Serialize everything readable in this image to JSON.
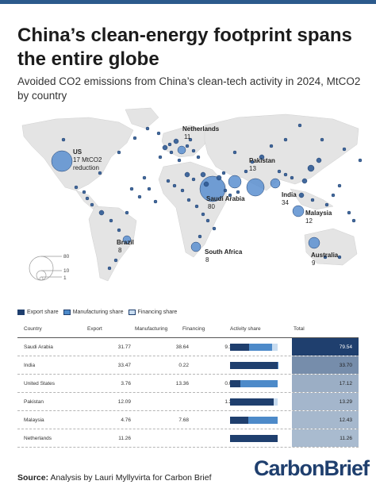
{
  "colors": {
    "export": "#1f3f6e",
    "manufacturing": "#4d8ac9",
    "financing": "#c8dcf0",
    "land": "#e6e6e6",
    "bubble": "#4a7dbf"
  },
  "header": {
    "title": "China’s clean-energy footprint spans the entire globe",
    "subtitle": "Avoided CO2 emissions from China’s clean-tech activity in 2024, MtCO2 by country"
  },
  "map": {
    "labels": [
      {
        "name": "Netherlands",
        "value": "11"
      },
      {
        "name": "US",
        "value": "17 MtCO2 reduction"
      },
      {
        "name": "Pakistan",
        "value": "13"
      },
      {
        "name": "Saudi Arabia",
        "value": "80"
      },
      {
        "name": "India",
        "value": "34"
      },
      {
        "name": "Malaysia",
        "value": "12"
      },
      {
        "name": "Brazil",
        "value": "8"
      },
      {
        "name": "South Africa",
        "value": "8"
      },
      {
        "name": "Australia",
        "value": "9"
      }
    ],
    "size_legend": [
      "80",
      "10",
      "1"
    ]
  },
  "legend": {
    "export": "Export share",
    "manufacturing": "Manufacturing share",
    "financing": "Financing share"
  },
  "chart_data": {
    "type": "table",
    "columns": [
      "Country",
      "Export",
      "Manufacturing",
      "Financing",
      "Activity share",
      "Total"
    ],
    "rows": [
      {
        "country": "Saudi Arabia",
        "export": "31.77",
        "manufacturing": "38.64",
        "financing": "9.13",
        "total": "79.54",
        "e": 31.77,
        "m": 38.64,
        "f": 9.13,
        "t": 79.54
      },
      {
        "country": "India",
        "export": "33.47",
        "manufacturing": "0.22",
        "financing": "",
        "total": "33.70",
        "e": 33.47,
        "m": 0.22,
        "f": 0,
        "t": 33.7
      },
      {
        "country": "United States",
        "export": "3.76",
        "manufacturing": "13.36",
        "financing": "0.00",
        "total": "17.12",
        "e": 3.76,
        "m": 13.36,
        "f": 0,
        "t": 17.12
      },
      {
        "country": "Pakistan",
        "export": "12.09",
        "manufacturing": "",
        "financing": "1.20",
        "total": "13.29",
        "e": 12.09,
        "m": 0,
        "f": 1.2,
        "t": 13.29
      },
      {
        "country": "Malaysia",
        "export": "4.76",
        "manufacturing": "7.68",
        "financing": "",
        "total": "12.43",
        "e": 4.76,
        "m": 7.68,
        "f": 0,
        "t": 12.43
      },
      {
        "country": "Netherlands",
        "export": "11.26",
        "manufacturing": "",
        "financing": "",
        "total": "11.26",
        "e": 11.26,
        "m": 0,
        "f": 0,
        "t": 11.26
      }
    ],
    "total_max": 79.54
  },
  "footer": {
    "source_label": "Source:",
    "source_text": "Analysis by Lauri Myllyvirta for Carbon Brief",
    "logo": "CarbonBrief"
  }
}
